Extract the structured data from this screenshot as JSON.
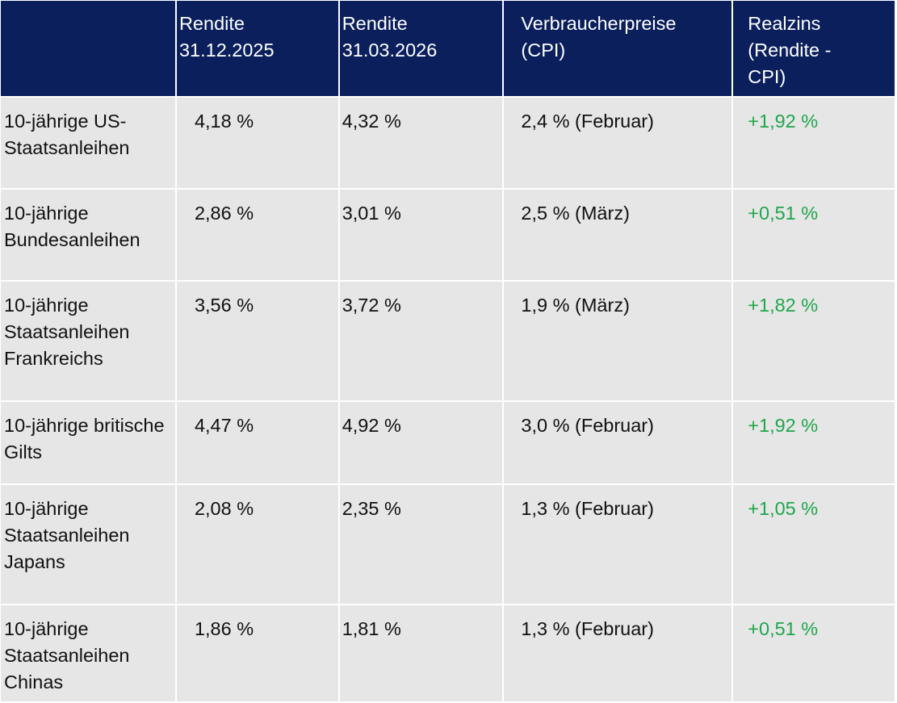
{
  "table": {
    "header": [
      "",
      "Rendite 31.12.2025",
      "Rendite 31.03.2026",
      "Verbraucherpreise (CPI)",
      "Realzins (Rendite - CPI)"
    ],
    "rows": [
      [
        "10-jährige US-Staatsanleihen",
        "4,18 %",
        "4,32 %",
        "2,4 % (Februar)",
        "+1,92 %"
      ],
      [
        "10-jährige Bundesanleihen",
        "2,86 %",
        "3,01 %",
        "2,5 % (März)",
        "+0,51 %"
      ],
      [
        "10-jährige Staatsanleihen Frankreichs",
        "3,56 %",
        "3,72 %",
        "1,9 % (März)",
        "+1,82 %"
      ],
      [
        "10-jährige britische Gilts",
        "4,47 %",
        "4,92 %",
        "3,0 % (Februar)",
        "+1,92 %"
      ],
      [
        "10-jährige Staatsanleihen Japans",
        "2,08 %",
        "2,35 %",
        "1,3 % (Februar)",
        "+1,05 %"
      ],
      [
        "10-jährige Staatsanleihen Chinas",
        "1,86 %",
        "1,81 %",
        "1,3 % (Februar)",
        "+0,51 %"
      ]
    ]
  }
}
